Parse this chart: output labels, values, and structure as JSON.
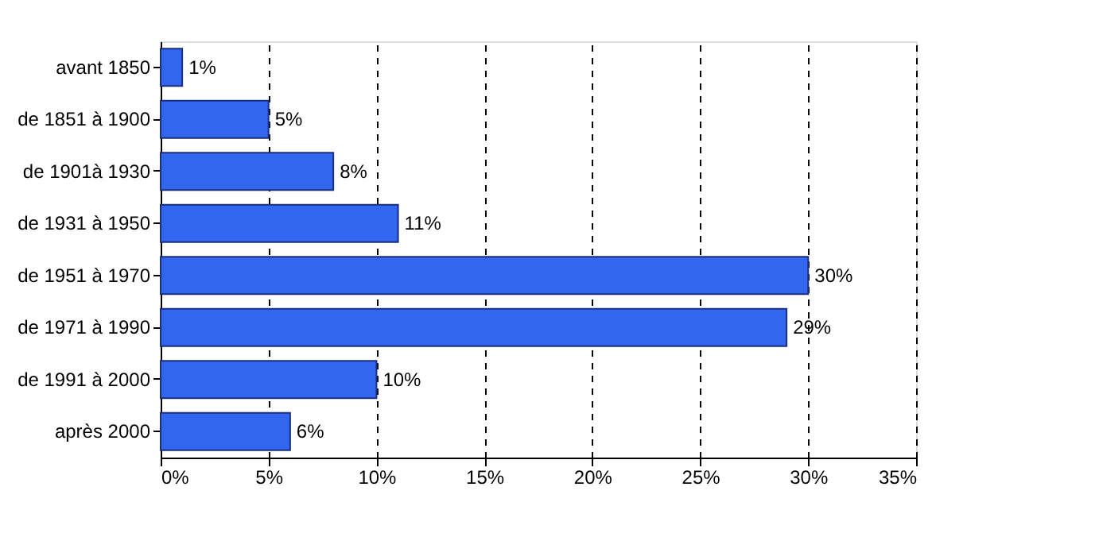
{
  "chart_data": {
    "type": "bar",
    "orientation": "horizontal",
    "categories": [
      "avant 1850",
      "de 1851 à 1900",
      "de 1901à 1930",
      "de 1931 à 1950",
      "de 1951 à 1970",
      "de 1971 à 1990",
      "de 1991 à 2000",
      "après 2000"
    ],
    "values": [
      1,
      5,
      8,
      11,
      30,
      29,
      10,
      6
    ],
    "value_labels": [
      "1%",
      "5%",
      "8%",
      "11%",
      "30%",
      "29%",
      "10%",
      "6%"
    ],
    "color": "#3366ee",
    "xlim": [
      0,
      35
    ],
    "xticks": [
      {
        "value": 0,
        "label": "0%"
      },
      {
        "value": 5,
        "label": "5%"
      },
      {
        "value": 10,
        "label": "10%"
      },
      {
        "value": 15,
        "label": "15%"
      },
      {
        "value": 20,
        "label": "20%"
      },
      {
        "value": 25,
        "label": "25%"
      },
      {
        "value": 30,
        "label": "30%"
      },
      {
        "value": 35,
        "label": "35%"
      }
    ],
    "grid": "x"
  }
}
